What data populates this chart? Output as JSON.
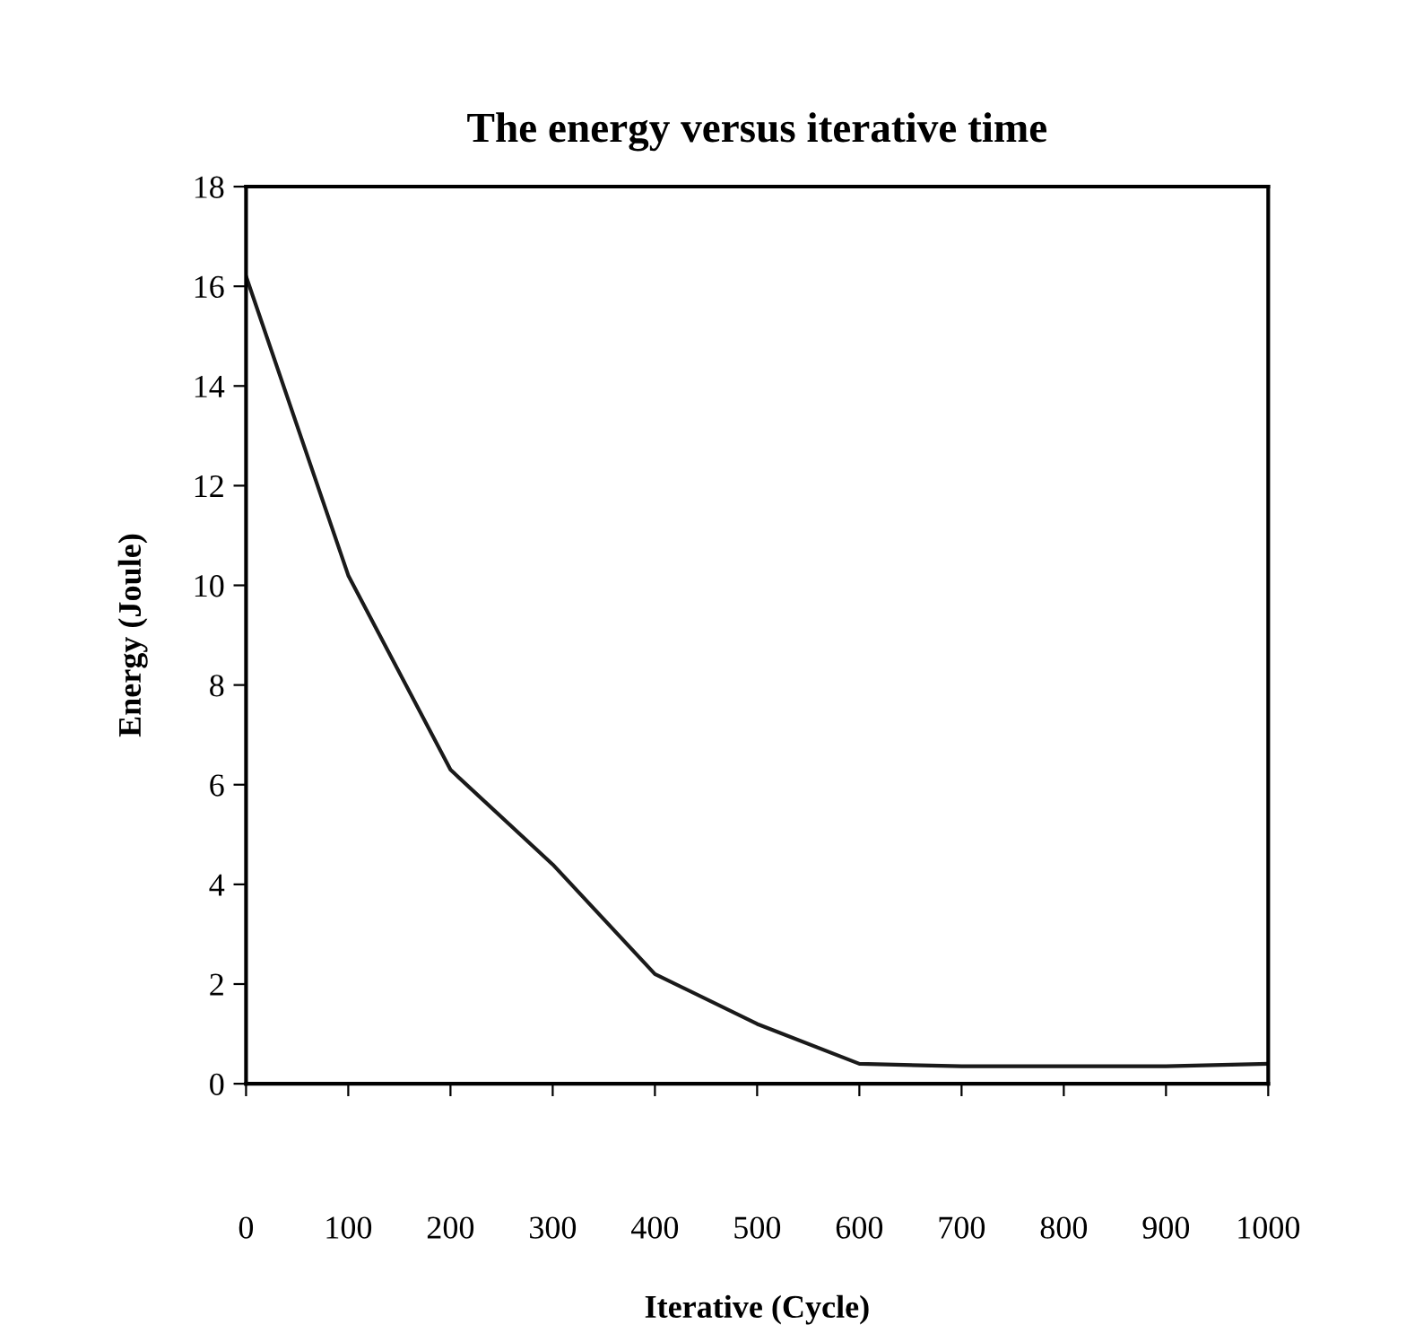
{
  "chart_data": {
    "type": "line",
    "title": "The energy versus iterative time",
    "xlabel": "Iterative (Cycle)",
    "ylabel": "Energy (Joule)",
    "x": [
      0,
      100,
      200,
      300,
      400,
      500,
      600,
      700,
      800,
      900,
      1000
    ],
    "series": [
      {
        "color": "#1a1a1a",
        "values": [
          16.2,
          10.2,
          6.3,
          4.4,
          2.2,
          1.2,
          0.4,
          0.35,
          0.35,
          0.35,
          0.4
        ]
      }
    ],
    "xlim": [
      0,
      1000
    ],
    "xticks": [
      0,
      100,
      200,
      300,
      400,
      500,
      600,
      700,
      800,
      900,
      1000
    ],
    "ylim": [
      0,
      18
    ],
    "yticks": [
      0,
      2,
      4,
      6,
      8,
      10,
      12,
      14,
      16,
      18
    ],
    "grid": false,
    "legend": false,
    "marker": "none",
    "line_style": "solid"
  }
}
